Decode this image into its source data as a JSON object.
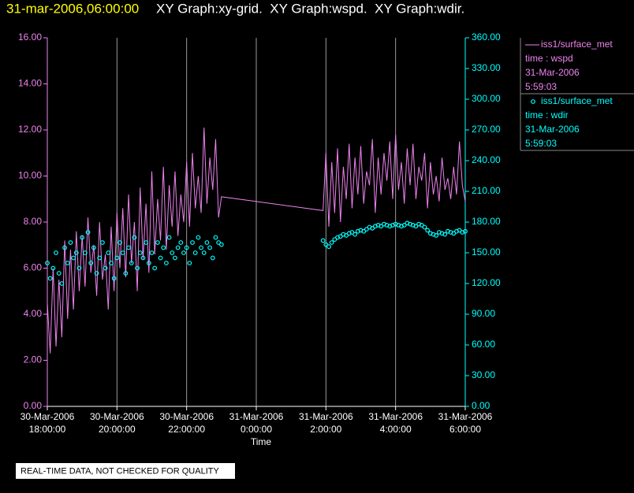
{
  "chart_data": {
    "type": "line",
    "title": "31-mar-2006,06:00:00",
    "subtitle": "XY Graph:xy-grid.  XY Graph:wspd.  XY Graph:wdir.",
    "x_label": "Time",
    "note": "REAL-TIME DATA, NOT CHECKED FOR QUALITY",
    "grid": true,
    "x": [
      "2006-03-30T18:00:00",
      "2006-03-30T18:05:00",
      "2006-03-30T18:10:00",
      "2006-03-30T18:15:00",
      "2006-03-30T18:20:00",
      "2006-03-30T18:25:00",
      "2006-03-30T18:30:00",
      "2006-03-30T18:35:00",
      "2006-03-30T18:40:00",
      "2006-03-30T18:45:00",
      "2006-03-30T18:50:00",
      "2006-03-30T18:55:00",
      "2006-03-30T19:00:00",
      "2006-03-30T19:05:00",
      "2006-03-30T19:10:00",
      "2006-03-30T19:15:00",
      "2006-03-30T19:20:00",
      "2006-03-30T19:25:00",
      "2006-03-30T19:30:00",
      "2006-03-30T19:35:00",
      "2006-03-30T19:40:00",
      "2006-03-30T19:45:00",
      "2006-03-30T19:50:00",
      "2006-03-30T19:55:00",
      "2006-03-30T20:00:00",
      "2006-03-30T20:05:00",
      "2006-03-30T20:10:00",
      "2006-03-30T20:15:00",
      "2006-03-30T20:20:00",
      "2006-03-30T20:25:00",
      "2006-03-30T20:30:00",
      "2006-03-30T20:35:00",
      "2006-03-30T20:40:00",
      "2006-03-30T20:45:00",
      "2006-03-30T20:50:00",
      "2006-03-30T20:55:00",
      "2006-03-30T21:00:00",
      "2006-03-30T21:05:00",
      "2006-03-30T21:10:00",
      "2006-03-30T21:15:00",
      "2006-03-30T21:20:00",
      "2006-03-30T21:25:00",
      "2006-03-30T21:30:00",
      "2006-03-30T21:35:00",
      "2006-03-30T21:40:00",
      "2006-03-30T21:45:00",
      "2006-03-30T21:50:00",
      "2006-03-30T21:55:00",
      "2006-03-30T22:00:00",
      "2006-03-30T22:05:00",
      "2006-03-30T22:10:00",
      "2006-03-30T22:15:00",
      "2006-03-30T22:20:00",
      "2006-03-30T22:25:00",
      "2006-03-30T22:30:00",
      "2006-03-30T22:35:00",
      "2006-03-30T22:40:00",
      "2006-03-30T22:45:00",
      "2006-03-30T22:50:00",
      "2006-03-30T22:55:00",
      "2006-03-30T23:00:00",
      "2006-03-31T01:55:00",
      "2006-03-31T02:00:00",
      "2006-03-31T02:05:00",
      "2006-03-31T02:10:00",
      "2006-03-31T02:15:00",
      "2006-03-31T02:20:00",
      "2006-03-31T02:25:00",
      "2006-03-31T02:30:00",
      "2006-03-31T02:35:00",
      "2006-03-31T02:40:00",
      "2006-03-31T02:45:00",
      "2006-03-31T02:50:00",
      "2006-03-31T02:55:00",
      "2006-03-31T03:00:00",
      "2006-03-31T03:05:00",
      "2006-03-31T03:10:00",
      "2006-03-31T03:15:00",
      "2006-03-31T03:20:00",
      "2006-03-31T03:25:00",
      "2006-03-31T03:30:00",
      "2006-03-31T03:35:00",
      "2006-03-31T03:40:00",
      "2006-03-31T03:45:00",
      "2006-03-31T03:50:00",
      "2006-03-31T03:55:00",
      "2006-03-31T04:00:00",
      "2006-03-31T04:05:00",
      "2006-03-31T04:10:00",
      "2006-03-31T04:15:00",
      "2006-03-31T04:20:00",
      "2006-03-31T04:25:00",
      "2006-03-31T04:30:00",
      "2006-03-31T04:35:00",
      "2006-03-31T04:40:00",
      "2006-03-31T04:45:00",
      "2006-03-31T04:50:00",
      "2006-03-31T04:55:00",
      "2006-03-31T05:00:00",
      "2006-03-31T05:05:00",
      "2006-03-31T05:10:00",
      "2006-03-31T05:15:00",
      "2006-03-31T05:20:00",
      "2006-03-31T05:25:00",
      "2006-03-31T05:30:00",
      "2006-03-31T05:35:00",
      "2006-03-31T05:40:00",
      "2006-03-31T05:45:00",
      "2006-03-31T05:50:00",
      "2006-03-31T05:55:00",
      "2006-03-31T06:00:00"
    ],
    "series": [
      {
        "name": "iss1/surface_met",
        "legend_lines": [
          "time : wspd",
          "31-Mar-2006",
          "5:59:03"
        ],
        "color": "#ee82ee",
        "marker": "line",
        "values": [
          4.5,
          2.3,
          6.0,
          2.6,
          5.5,
          3.0,
          7.2,
          3.8,
          6.8,
          4.2,
          7.6,
          5.0,
          7.4,
          5.2,
          8.2,
          5.8,
          7.0,
          4.8,
          8.0,
          5.5,
          6.6,
          4.2,
          7.8,
          5.0,
          8.4,
          6.0,
          8.6,
          5.6,
          9.2,
          6.2,
          8.0,
          5.0,
          9.5,
          6.4,
          8.8,
          5.8,
          10.2,
          6.6,
          9.0,
          7.2,
          10.4,
          6.8,
          9.6,
          7.8,
          10.2,
          7.4,
          9.2,
          8.0,
          10.6,
          7.8,
          11.0,
          8.6,
          10.0,
          8.4,
          12.1,
          8.8,
          10.8,
          9.4,
          11.6,
          8.2,
          9.1,
          8.5,
          11.0,
          7.8,
          10.6,
          8.4,
          11.2,
          8.0,
          10.4,
          9.0,
          11.4,
          8.6,
          10.8,
          9.2,
          11.3,
          8.8,
          10.2,
          9.6,
          11.6,
          8.4,
          10.8,
          9.2,
          11.0,
          9.8,
          11.5,
          9.0,
          11.8,
          9.4,
          10.6,
          8.8,
          11.2,
          9.6,
          11.4,
          9.0,
          10.4,
          9.8,
          11.0,
          8.6,
          10.6,
          9.2,
          10.0,
          8.9,
          10.8,
          9.4,
          9.9,
          9.0,
          10.4,
          9.2,
          11.5,
          9.6,
          8.9
        ]
      },
      {
        "name": "iss1/surface_met",
        "legend_lines": [
          "time : wdir",
          "31-Mar-2006",
          "5:59:03"
        ],
        "color": "#00ffff",
        "marker": "circle",
        "axis": "y2",
        "values": [
          140,
          125,
          135,
          150,
          130,
          120,
          155,
          140,
          160,
          145,
          150,
          135,
          165,
          150,
          170,
          140,
          155,
          130,
          145,
          160,
          135,
          150,
          140,
          125,
          145,
          160,
          150,
          130,
          155,
          140,
          165,
          135,
          150,
          145,
          160,
          140,
          150,
          135,
          160,
          145,
          155,
          140,
          165,
          150,
          145,
          155,
          160,
          150,
          155,
          140,
          160,
          150,
          165,
          155,
          150,
          160,
          155,
          145,
          165,
          160,
          158,
          162,
          158,
          156,
          160,
          163,
          165,
          166,
          168,
          167,
          169,
          170,
          168,
          171,
          172,
          171,
          173,
          175,
          174,
          176,
          177,
          176,
          178,
          177,
          176,
          177,
          178,
          177,
          176,
          177,
          179,
          178,
          177,
          176,
          178,
          177,
          175,
          172,
          169,
          168,
          167,
          170,
          169,
          168,
          171,
          170,
          169,
          171,
          172,
          170,
          171
        ]
      }
    ],
    "xlim": [
      "2006-03-30T18:00:00",
      "2006-03-31T06:00:00"
    ],
    "xticks": [
      {
        "value": "2006-03-30T18:00:00",
        "label": [
          "30-Mar-2006",
          "18:00:00"
        ]
      },
      {
        "value": "2006-03-30T20:00:00",
        "label": [
          "30-Mar-2006",
          "20:00:00"
        ]
      },
      {
        "value": "2006-03-30T22:00:00",
        "label": [
          "30-Mar-2006",
          "22:00:00"
        ]
      },
      {
        "value": "2006-03-31T00:00:00",
        "label": [
          "31-Mar-2006",
          "0:00:00"
        ]
      },
      {
        "value": "2006-03-31T02:00:00",
        "label": [
          "31-Mar-2006",
          "2:00:00"
        ]
      },
      {
        "value": "2006-03-31T04:00:00",
        "label": [
          "31-Mar-2006",
          "4:00:00"
        ]
      },
      {
        "value": "2006-03-31T06:00:00",
        "label": [
          "31-Mar-2006",
          "6:00:00"
        ]
      }
    ],
    "ylim": [
      0,
      16
    ],
    "yticks": [
      {
        "value": 0,
        "label": "0.00"
      },
      {
        "value": 2,
        "label": "2.00"
      },
      {
        "value": 4,
        "label": "4.00"
      },
      {
        "value": 6,
        "label": "6.00"
      },
      {
        "value": 8,
        "label": "8.00"
      },
      {
        "value": 10,
        "label": "10.00"
      },
      {
        "value": 12,
        "label": "12.00"
      },
      {
        "value": 14,
        "label": "14.00"
      },
      {
        "value": 16,
        "label": "16.00"
      }
    ],
    "y2lim": [
      0,
      360
    ],
    "y2ticks": [
      {
        "value": 0,
        "label": "0.00"
      },
      {
        "value": 30,
        "label": "30.00"
      },
      {
        "value": 60,
        "label": "60.00"
      },
      {
        "value": 90,
        "label": "90.00"
      },
      {
        "value": 120,
        "label": "120.00"
      },
      {
        "value": 150,
        "label": "150.00"
      },
      {
        "value": 180,
        "label": "180.00"
      },
      {
        "value": 210,
        "label": "210.00"
      },
      {
        "value": 240,
        "label": "240.00"
      },
      {
        "value": 270,
        "label": "270.00"
      },
      {
        "value": 300,
        "label": "300.00"
      },
      {
        "value": 330,
        "label": "330.00"
      },
      {
        "value": 360,
        "label": "360.00"
      }
    ]
  }
}
